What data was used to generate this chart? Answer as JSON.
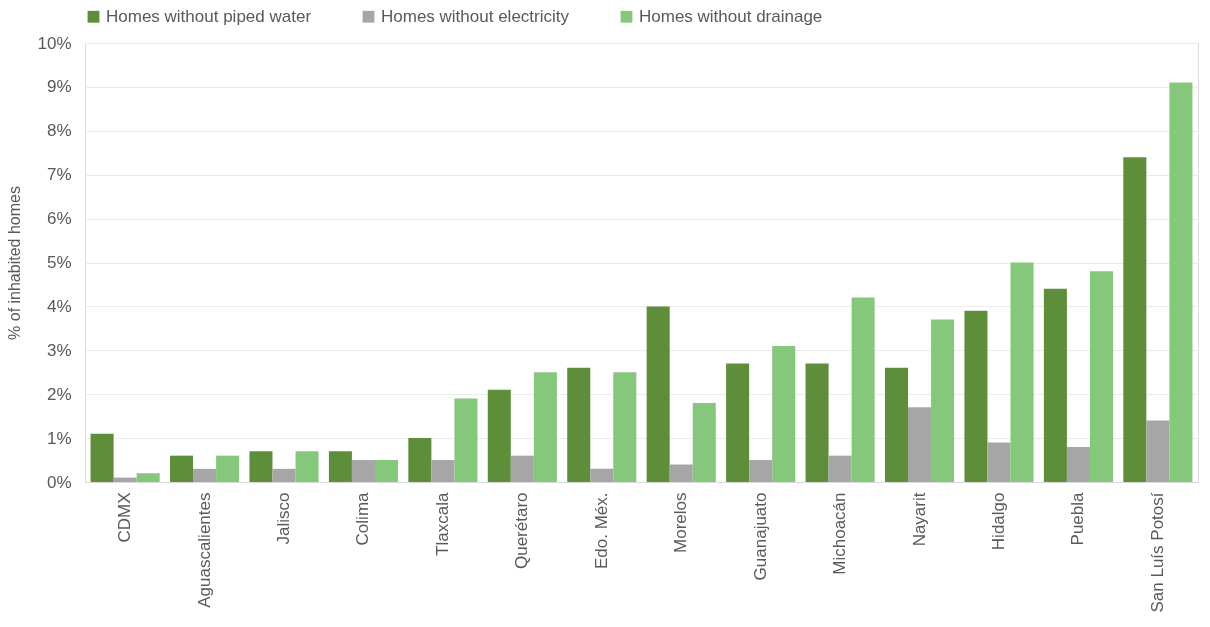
{
  "chart_data": {
    "type": "bar",
    "ylabel": "% of inhabited homes",
    "categories": [
      "CDMX",
      "Aguascalientes",
      "Jalisco",
      "Colima",
      "Tlaxcala",
      "Querétaro",
      "Edo. Méx.",
      "Morelos",
      "Guanajuato",
      "Michoacán",
      "Nayarit",
      "Hidalgo",
      "Puebla",
      "San Luís Potosí"
    ],
    "series": [
      {
        "name": "Homes without piped water",
        "color": "#5e8e3a",
        "values": [
          1.1,
          0.6,
          0.7,
          0.7,
          1.0,
          2.1,
          2.6,
          4.0,
          2.7,
          2.7,
          2.6,
          3.9,
          4.4,
          7.4
        ]
      },
      {
        "name": "Homes without electricity",
        "color": "#a6a6a6",
        "values": [
          0.1,
          0.3,
          0.3,
          0.5,
          0.5,
          0.6,
          0.3,
          0.4,
          0.5,
          0.6,
          1.7,
          0.9,
          0.8,
          1.4
        ]
      },
      {
        "name": "Homes without drainage",
        "color": "#85c77b",
        "values": [
          0.2,
          0.6,
          0.7,
          0.5,
          1.9,
          2.5,
          2.5,
          1.8,
          3.1,
          4.2,
          3.7,
          5.0,
          4.8,
          9.1
        ]
      }
    ],
    "ylim": [
      0,
      10
    ],
    "yticks": [
      {
        "value": 0,
        "label": "0%"
      },
      {
        "value": 1,
        "label": "1%"
      },
      {
        "value": 2,
        "label": "2%"
      },
      {
        "value": 3,
        "label": "3%"
      },
      {
        "value": 4,
        "label": "4%"
      },
      {
        "value": 5,
        "label": "5%"
      },
      {
        "value": 6,
        "label": "6%"
      },
      {
        "value": 7,
        "label": "7%"
      },
      {
        "value": 8,
        "label": "8%"
      },
      {
        "value": 9,
        "label": "9%"
      },
      {
        "value": 10,
        "label": "10%"
      }
    ],
    "grid": "y",
    "legend": "top"
  }
}
